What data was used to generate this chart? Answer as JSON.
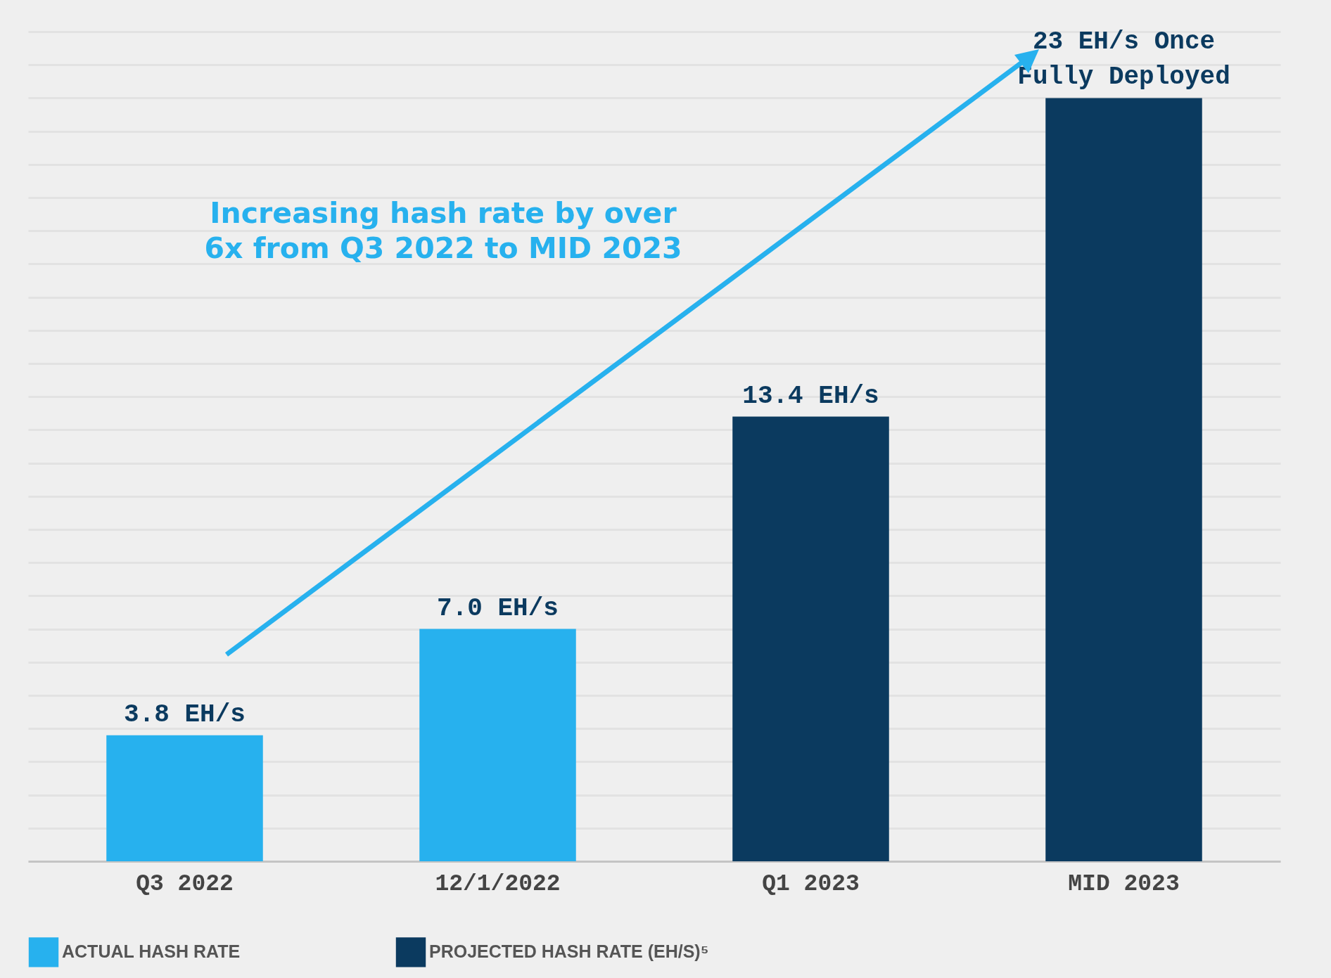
{
  "chart_data": {
    "type": "bar",
    "categories": [
      "Q3 2022",
      "12/1/2022",
      "Q1 2023",
      "MID 2023"
    ],
    "series": [
      {
        "name": "ACTUAL HASH RATE",
        "color": "#27b1ee",
        "values": [
          3.8,
          7.0,
          null,
          null
        ],
        "value_labels": [
          "3.8 EH/s",
          "7.0 EH/s",
          null,
          null
        ]
      },
      {
        "name": "PROJECTED HASH RATE (EH/S)⁵",
        "color": "#0b3a5f",
        "values": [
          null,
          null,
          13.4,
          23
        ],
        "value_labels": [
          null,
          null,
          "13.4 EH/s",
          "23 EH/s Once\nFully Deployed"
        ]
      }
    ],
    "ylim": [
      0,
      25
    ],
    "yticks": [
      {
        "value": 0,
        "label": null
      },
      {
        "value": 1,
        "label": null
      },
      {
        "value": 2,
        "label": null
      },
      {
        "value": 3,
        "label": null
      },
      {
        "value": 4,
        "label": null
      },
      {
        "value": 5,
        "label": null
      },
      {
        "value": 6,
        "label": null
      },
      {
        "value": 7,
        "label": null
      },
      {
        "value": 8,
        "label": null
      },
      {
        "value": 9,
        "label": null
      },
      {
        "value": 10,
        "label": null
      },
      {
        "value": 11,
        "label": null
      },
      {
        "value": 12,
        "label": null
      },
      {
        "value": 13,
        "label": null
      },
      {
        "value": 14,
        "label": null
      },
      {
        "value": 15,
        "label": null
      },
      {
        "value": 16,
        "label": null
      },
      {
        "value": 17,
        "label": null
      },
      {
        "value": 18,
        "label": null
      },
      {
        "value": 19,
        "label": null
      },
      {
        "value": 20,
        "label": null
      },
      {
        "value": 21,
        "label": null
      },
      {
        "value": 22,
        "label": null
      },
      {
        "value": 23,
        "label": null
      },
      {
        "value": 24,
        "label": null
      },
      {
        "value": 25,
        "label": null
      }
    ],
    "tick_labels": "x",
    "grid": "y",
    "legend": "bottom",
    "annotations": [
      "Increasing hash rate by over\n6x from Q3 2022 to MID 2023"
    ]
  }
}
